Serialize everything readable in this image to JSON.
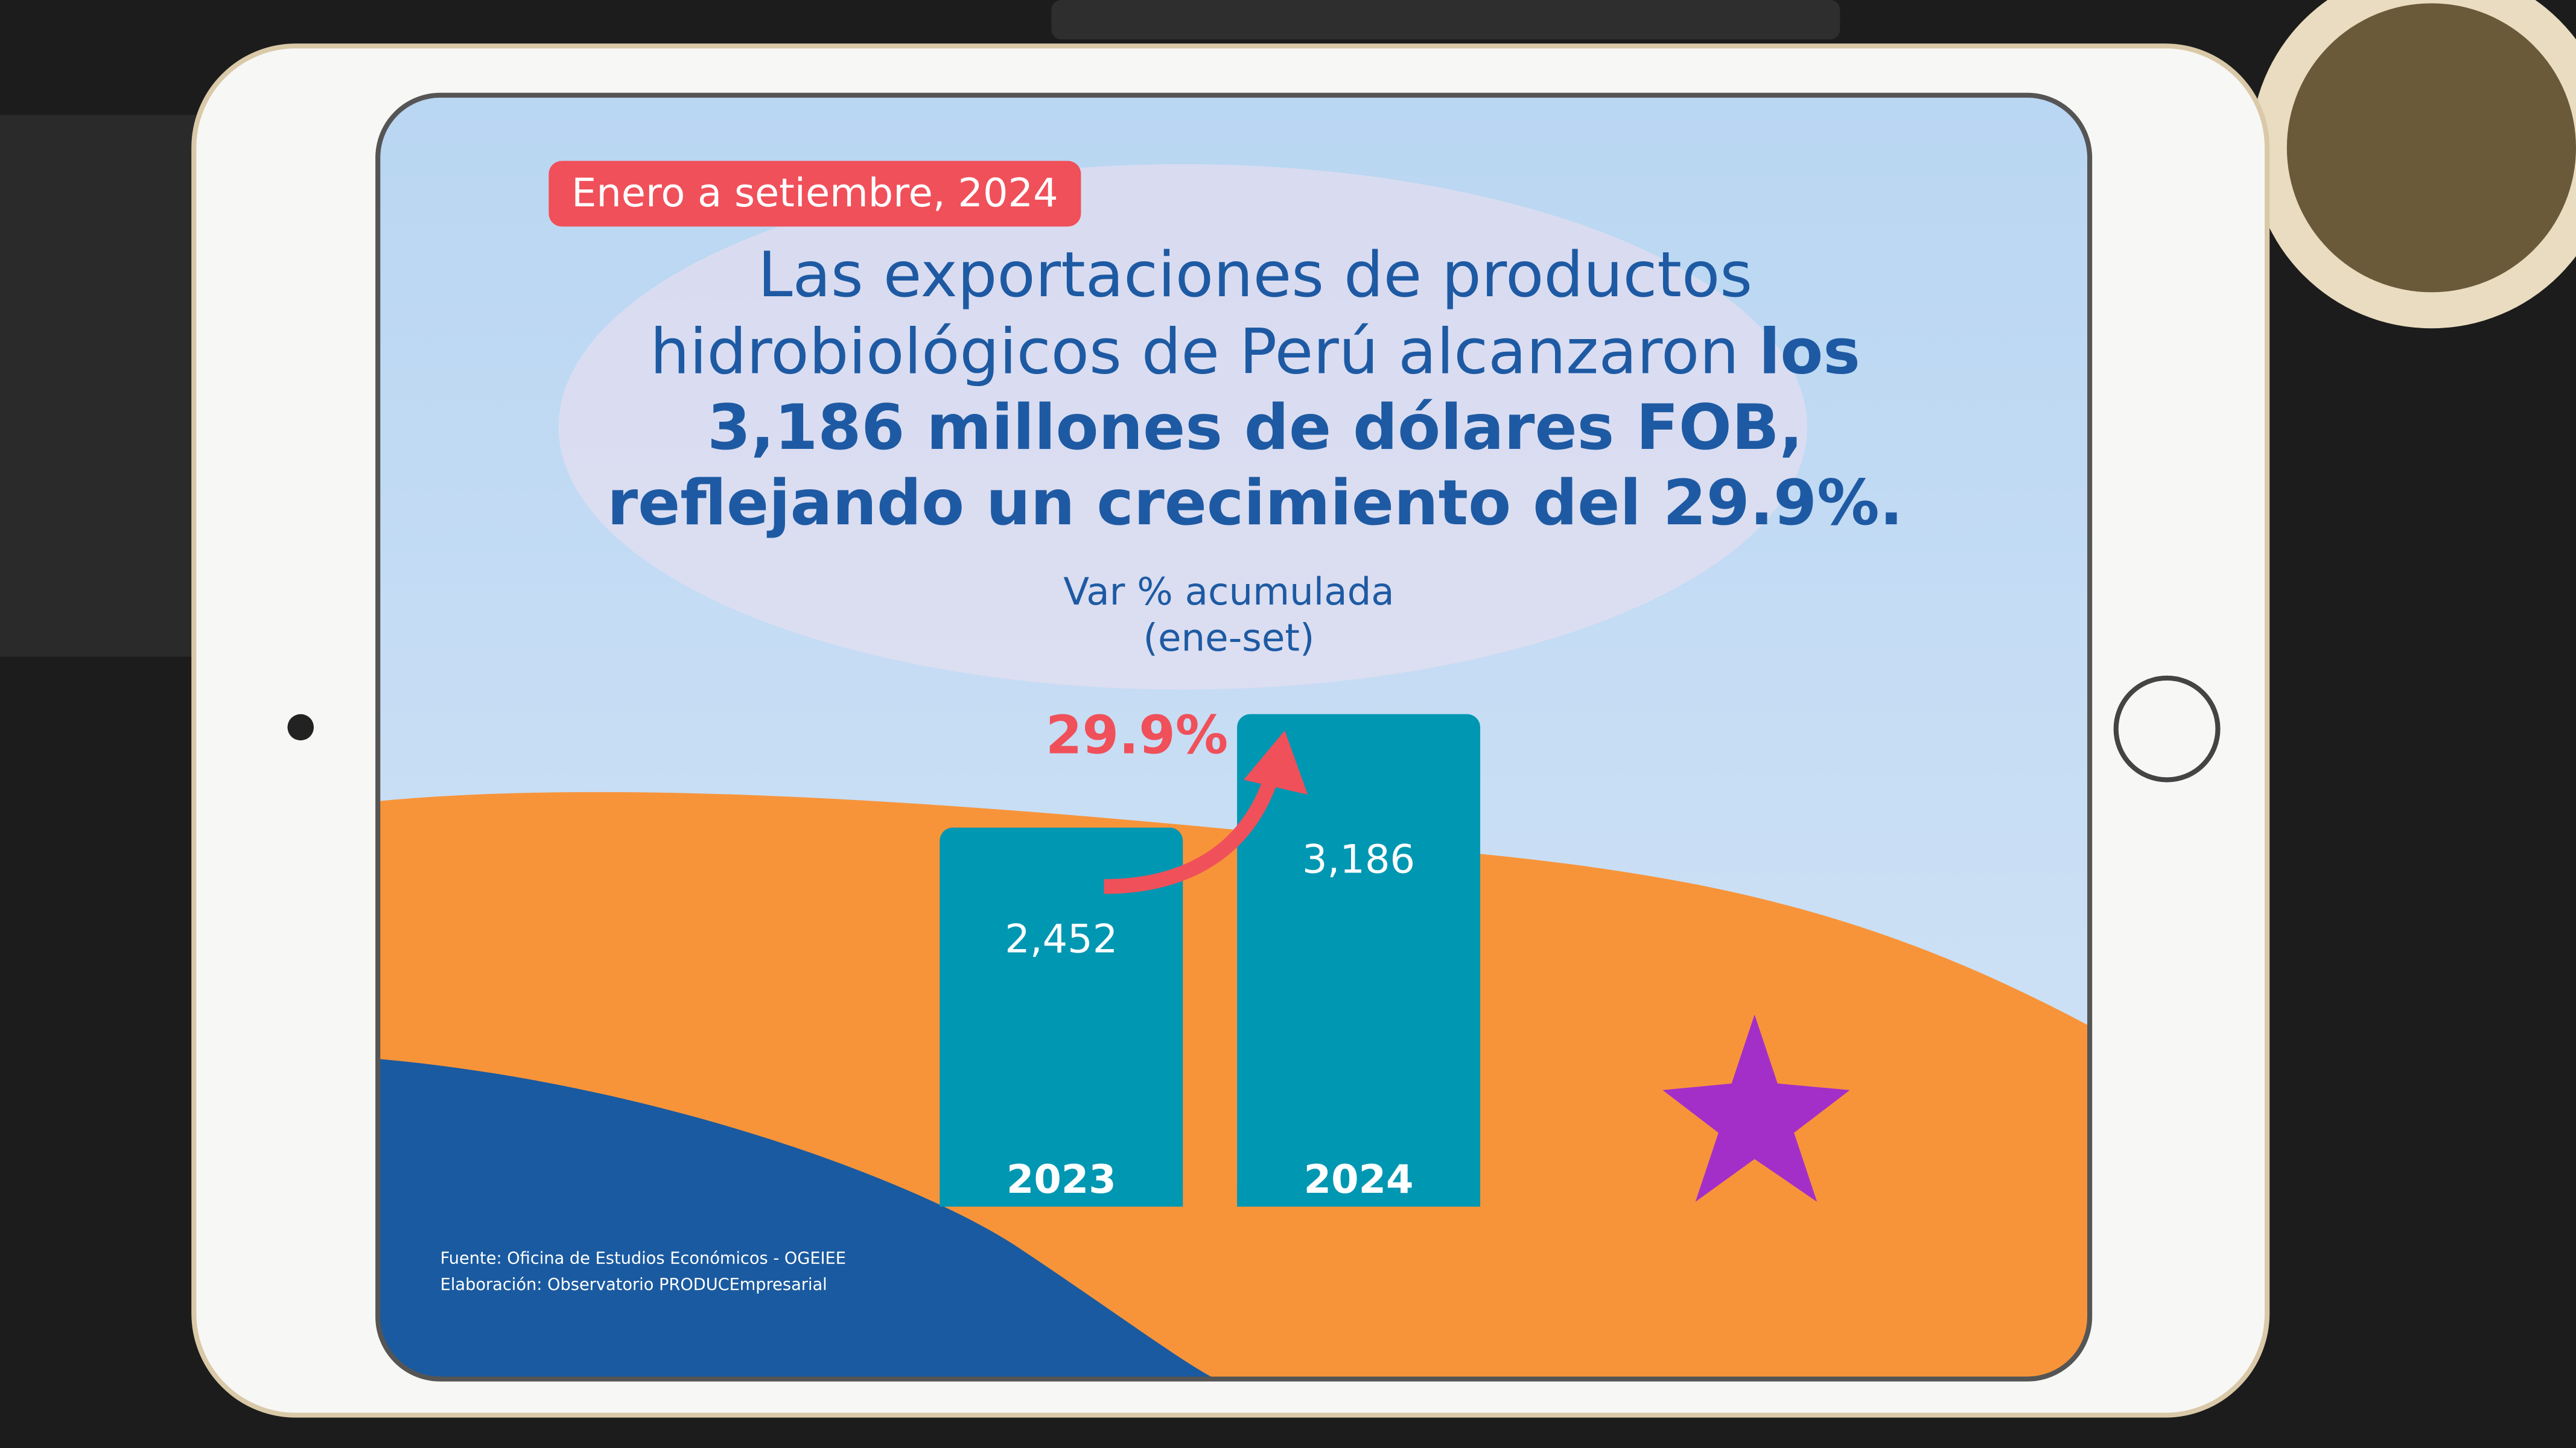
{
  "badge": "Enero a setiembre, 2024",
  "chart_data": {
    "type": "bar",
    "title": [
      "Las exportaciones de productos",
      "hidrobiológicos de Perú alcanzaron",
      "los",
      "3,186 millones de dólares FOB,",
      "reflejando un crecimiento del 29.9%."
    ],
    "subtitle": [
      "Var % acumulada",
      "(ene-set)"
    ],
    "annotation": "29.9%",
    "categories": [
      "2023",
      "2024"
    ],
    "values": [
      2452,
      3186
    ],
    "value_labels": [
      "2,452",
      "3,186"
    ],
    "color": "#0097b2"
  },
  "source": [
    "Fuente: Oficina de Estudios Económicos - OGEIEE",
    "Elaboración: Observatorio PRODUCEmpresarial"
  ]
}
